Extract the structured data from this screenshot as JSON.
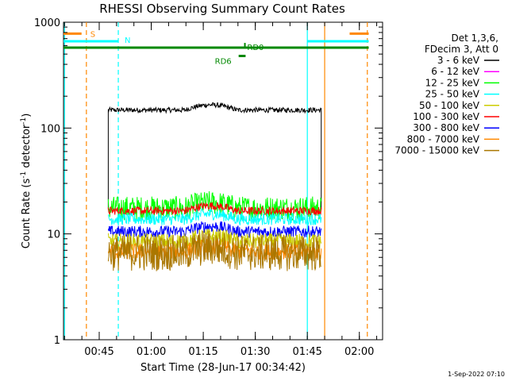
{
  "chart_data": {
    "type": "line",
    "title": "RHESSI Observing Summary Count Rates",
    "xlabel": "Start Time (28-Jun-17 00:34:42)",
    "ylabel_main": "Count Rate (s",
    "ylabel_sup1": "-1",
    "ylabel_mid": " detector",
    "ylabel_sup2": "-1",
    "ylabel_end": ")",
    "y_scale": "log",
    "ylim": [
      1,
      1000
    ],
    "y_ticks": [
      {
        "value": 1,
        "label": "1"
      },
      {
        "value": 10,
        "label": "10"
      },
      {
        "value": 100,
        "label": "100"
      },
      {
        "value": 1000,
        "label": "1000"
      }
    ],
    "xlim_minutes": [
      0,
      92
    ],
    "x_ticks": [
      {
        "minute": 10.3,
        "label": "00:45"
      },
      {
        "minute": 25.3,
        "label": "01:00"
      },
      {
        "minute": 40.3,
        "label": "01:15"
      },
      {
        "minute": 55.3,
        "label": "01:30"
      },
      {
        "minute": 70.3,
        "label": "01:45"
      },
      {
        "minute": 85.3,
        "label": "02:00"
      }
    ],
    "data_window_minutes": [
      12.9,
      74.3
    ],
    "legend": {
      "placement": "right",
      "header_line1": "Det 1,3,6,",
      "header_line2": "FDecim 3, Att 0",
      "entries": [
        {
          "label": "3 - 6 keV",
          "color": "#000000"
        },
        {
          "label": "6 - 12 keV",
          "color": "#ff00ff"
        },
        {
          "label": "12 - 25 keV",
          "color": "#00ff00"
        },
        {
          "label": "25 - 50 keV",
          "color": "#00ffff"
        },
        {
          "label": "50 - 100 keV",
          "color": "#cccc00"
        },
        {
          "label": "100 - 300 keV",
          "color": "#ff0000"
        },
        {
          "label": "300 - 800 keV",
          "color": "#0000ff"
        },
        {
          "label": "800 - 7000 keV",
          "color": "#ff8800"
        },
        {
          "label": "7000 - 15000 keV",
          "color": "#aa7700"
        }
      ]
    },
    "series": [
      {
        "color": "#000000",
        "level": 148,
        "noise": 0.025
      },
      {
        "color": "#00ff00",
        "level": 17.5,
        "noise": 0.12
      },
      {
        "color": "#ff0000",
        "level": 16.5,
        "noise": 0.04
      },
      {
        "color": "#00ffff",
        "level": 13.8,
        "noise": 0.06
      },
      {
        "color": "#0000ff",
        "level": 10.5,
        "noise": 0.06
      },
      {
        "color": "#cccc00",
        "level": 8.5,
        "noise": 0.08
      },
      {
        "color": "#ff8800",
        "level": 6.8,
        "noise": 0.08
      },
      {
        "color": "#aa7700",
        "level": 6.6,
        "noise": 0.18
      }
    ],
    "flag_bars": [
      {
        "label": "S",
        "color": "#ff8800",
        "y_value": 780,
        "segments": [
          [
            0,
            5.2
          ],
          [
            82.5,
            88.0
          ]
        ]
      },
      {
        "label": "N",
        "color": "#00ffff",
        "y_value": 660,
        "segments": [
          [
            0,
            15.8
          ],
          [
            70.3,
            88.0
          ]
        ]
      },
      {
        "label": "RD0",
        "color": "#008800",
        "y_value": 575,
        "segments": [
          [
            0,
            88.0
          ]
        ]
      },
      {
        "label": "RD6",
        "color": "#008800",
        "y_value": 480,
        "segments": [
          [
            50.5,
            52.5
          ]
        ]
      }
    ],
    "vertical_markers": [
      {
        "minute": 0.3,
        "color": "#00ffff",
        "style": "solid"
      },
      {
        "minute": 6.6,
        "color": "#ff8800",
        "style": "dashed"
      },
      {
        "minute": 15.8,
        "color": "#00ffff",
        "style": "dashed"
      },
      {
        "minute": 70.3,
        "color": "#00ffff",
        "style": "solid"
      },
      {
        "minute": 75.3,
        "color": "#ff8800",
        "style": "solid"
      },
      {
        "minute": 87.6,
        "color": "#ff8800",
        "style": "dashed"
      }
    ],
    "timestamp": "1-Sep-2022 07:10"
  }
}
